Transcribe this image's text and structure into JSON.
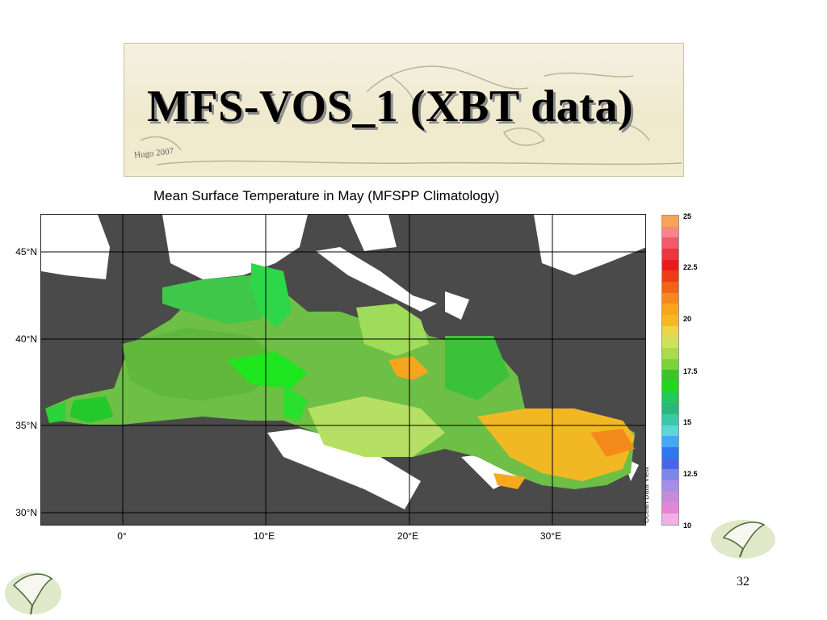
{
  "slide": {
    "title": "MFS-VOS_1 (XBT data)",
    "banner_signature": "Hugo 2007",
    "page_number": "32"
  },
  "map": {
    "title": "Mean Surface Temperature in May (MFSPP Climatology)",
    "lat_labels": [
      "45°N",
      "40°N",
      "35°N",
      "30°N"
    ],
    "lon_labels": [
      "0°",
      "10°E",
      "20°E",
      "30°E"
    ],
    "land_color": "#4a4a4a",
    "nodata_color": "#ffffff",
    "credit": "Ocean Data View"
  },
  "colorbar": {
    "ticks": [
      "25",
      "22.5",
      "20",
      "17.5",
      "15",
      "12.5",
      "10"
    ],
    "range": [
      10,
      25
    ],
    "colors_top_to_bottom": [
      "#f7a35a",
      "#f4868c",
      "#f25a6c",
      "#ee3441",
      "#e81c1c",
      "#ee3a16",
      "#f2621a",
      "#f58a1c",
      "#f8a51e",
      "#f7b822",
      "#e9d64a",
      "#cfe25a",
      "#a9dc4a",
      "#7cd23a",
      "#3cc22a",
      "#1fd81f",
      "#23c95a",
      "#2ab87a",
      "#39c9a9",
      "#5ed6d6",
      "#46a8f0",
      "#2f76f2",
      "#4a66e8",
      "#7d86e8",
      "#a98ee8",
      "#c68ad8",
      "#e486d6",
      "#f0b0e6"
    ]
  }
}
